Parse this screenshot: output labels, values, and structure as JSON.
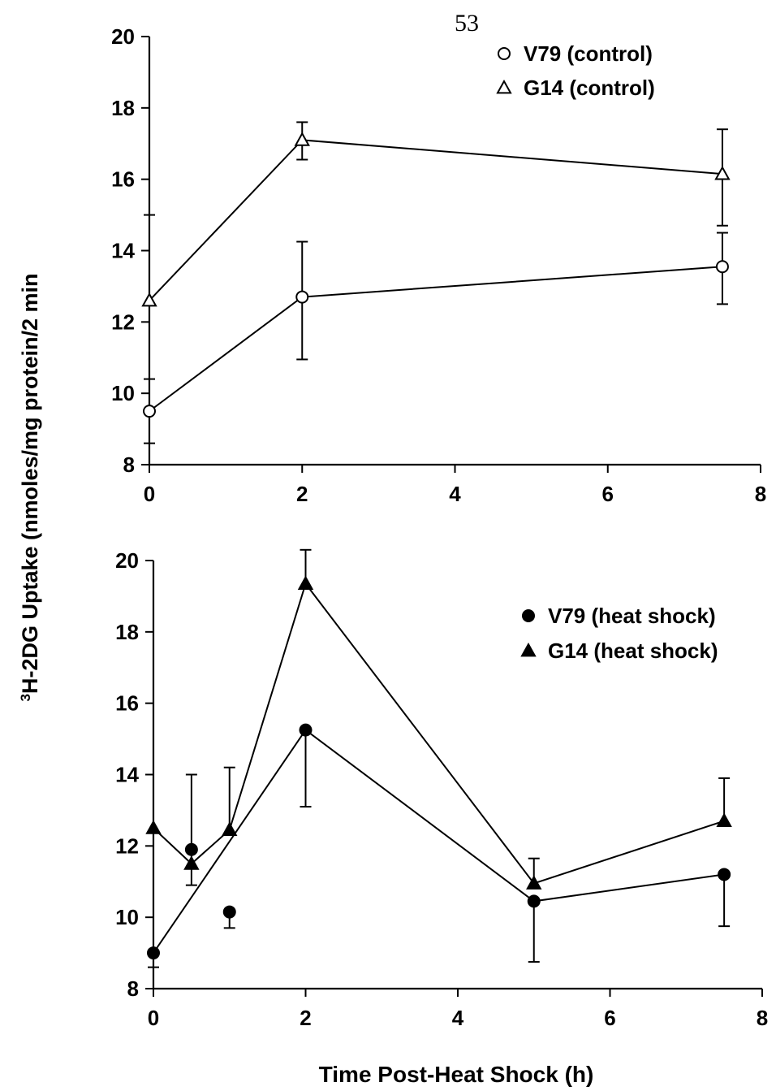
{
  "page": {
    "page_number": "53",
    "shared_ylabel": "H-2DG Uptake  (nmoles/mg protein/2 min",
    "ylabel_superscript": "3",
    "shared_xlabel": "Time Post-Heat Shock (h)"
  },
  "chart_data": [
    {
      "type": "line",
      "title": "",
      "xlabel": "",
      "ylabel": "",
      "xlim": [
        0,
        8
      ],
      "ylim": [
        8,
        20
      ],
      "xticks": [
        0,
        2,
        4,
        6,
        8
      ],
      "yticks": [
        8,
        10,
        12,
        14,
        16,
        18,
        20
      ],
      "legend_position": "top-right",
      "series": [
        {
          "name": "V79 (control)",
          "marker": "open-circle",
          "x": [
            0,
            2,
            7.5
          ],
          "y": [
            9.5,
            12.7,
            13.55
          ],
          "err_low": [
            0.9,
            1.75,
            1.05
          ],
          "err_high": [
            0.9,
            1.55,
            0.95
          ]
        },
        {
          "name": "G14 (control)",
          "marker": "open-triangle",
          "x": [
            0,
            2,
            7.5
          ],
          "y": [
            12.6,
            17.1,
            16.15
          ],
          "err_low": [
            0,
            0.55,
            1.45
          ],
          "err_high": [
            2.4,
            0.5,
            1.25
          ]
        }
      ]
    },
    {
      "type": "line",
      "title": "",
      "xlabel": "",
      "ylabel": "",
      "xlim": [
        0,
        8
      ],
      "ylim": [
        8,
        20
      ],
      "xticks": [
        0,
        2,
        4,
        6,
        8
      ],
      "yticks": [
        8,
        10,
        12,
        14,
        16,
        18,
        20
      ],
      "legend_position": "right",
      "series": [
        {
          "name": "V79 (heat shock)",
          "marker": "filled-circle",
          "x": [
            0,
            2,
            5,
            7.5
          ],
          "y": [
            9.0,
            15.25,
            10.45,
            11.2
          ],
          "err_low": [
            0.4,
            2.15,
            1.7,
            1.45
          ],
          "err_high": [
            0,
            0,
            0,
            0
          ]
        },
        {
          "name": "V79 (heat shock)",
          "marker": "filled-circle",
          "connected": false,
          "x": [
            0.5,
            1
          ],
          "y": [
            11.9,
            10.15
          ],
          "err_low": [
            0,
            0.45
          ],
          "err_high": [
            0,
            0
          ]
        },
        {
          "name": "G14 (heat shock)",
          "marker": "filled-triangle",
          "x": [
            0,
            0.5,
            1,
            2,
            5,
            7.5
          ],
          "y": [
            12.5,
            11.5,
            12.45,
            19.35,
            10.95,
            12.7
          ],
          "err_low": [
            0,
            0.6,
            0,
            0,
            0,
            0
          ],
          "err_high": [
            0,
            2.5,
            1.75,
            0.95,
            0.7,
            1.2
          ]
        }
      ]
    }
  ]
}
